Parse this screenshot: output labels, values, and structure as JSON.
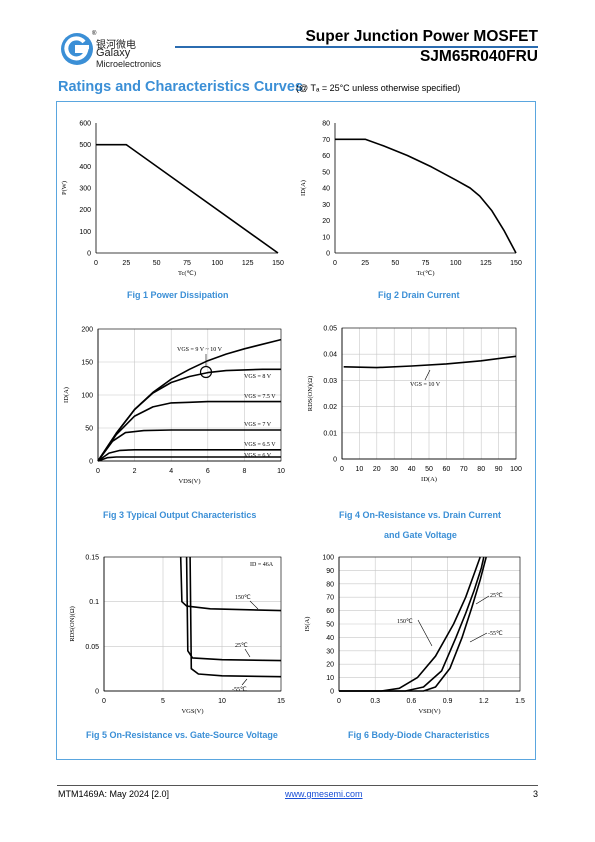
{
  "header": {
    "title": "Super Junction Power MOSFET",
    "part_number": "SJM65R040FRU",
    "brand_cn": "银河微电",
    "brand_name": "Galaxy",
    "brand_sub": "Microelectronics",
    "logo_mark": "®",
    "accent_color": "#2b6cb0"
  },
  "section": {
    "title": "Ratings and Characteristics Curves",
    "condition": "(@ Tₐ = 25°C unless otherwise specified)",
    "title_color": "#3b8fd6"
  },
  "captions": {
    "fig1": "Fig 1    Power Dissipation",
    "fig2": "Fig 2    Drain Current",
    "fig3": "Fig 3    Typical Output Characteristics",
    "fig4a": "Fig 4    On-Resistance vs. Drain Current",
    "fig4b": "and Gate Voltage",
    "fig5": "Fig 5    On-Resistance vs. Gate-Source Voltage",
    "fig6": "Fig 6    Body-Diode Characteristics"
  },
  "chart_data": [
    {
      "id": "fig1",
      "type": "line",
      "xlabel": "Tc(℃)",
      "ylabel": "P(W)",
      "xlim": [
        0,
        150
      ],
      "ylim": [
        0,
        600
      ],
      "xticks": [
        0,
        25,
        50,
        75,
        100,
        125,
        150
      ],
      "yticks": [
        0,
        100,
        200,
        300,
        400,
        500,
        600
      ],
      "grid": false,
      "series": [
        {
          "points": [
            [
              0,
              500
            ],
            [
              25,
              500
            ],
            [
              150,
              0
            ]
          ]
        }
      ]
    },
    {
      "id": "fig2",
      "type": "line",
      "xlabel": "Tc(℃)",
      "ylabel": "ID(A)",
      "xlim": [
        0,
        150
      ],
      "ylim": [
        0,
        80
      ],
      "xticks": [
        0,
        25,
        50,
        75,
        100,
        125,
        150
      ],
      "yticks": [
        0,
        10,
        20,
        30,
        40,
        50,
        60,
        70,
        80
      ],
      "grid": false,
      "series": [
        {
          "points": [
            [
              0,
              70
            ],
            [
              25,
              70
            ],
            [
              40,
              66
            ],
            [
              60,
              60
            ],
            [
              80,
              53
            ],
            [
              100,
              45
            ],
            [
              112,
              40
            ],
            [
              120,
              35
            ],
            [
              130,
              26
            ],
            [
              140,
              14
            ],
            [
              150,
              0
            ]
          ]
        }
      ]
    },
    {
      "id": "fig3",
      "type": "line",
      "xlabel": "VDS(V)",
      "ylabel": "ID(A)",
      "xlim": [
        0,
        10
      ],
      "ylim": [
        0,
        200
      ],
      "xticks": [
        0,
        2,
        4,
        6,
        8,
        10
      ],
      "yticks": [
        0,
        50,
        100,
        150,
        200
      ],
      "grid": true,
      "series": [
        {
          "name": "VGS = 9 V ~ 10 V",
          "points": [
            [
              0,
              0
            ],
            [
              1,
              42
            ],
            [
              2,
              78
            ],
            [
              3,
              104
            ],
            [
              4,
              124
            ],
            [
              5,
              139
            ],
            [
              6,
              152
            ],
            [
              7,
              162
            ],
            [
              8,
              170
            ],
            [
              9,
              177
            ],
            [
              10,
              184
            ]
          ]
        },
        {
          "name": "VGS = 8 V",
          "points": [
            [
              0,
              0
            ],
            [
              1,
              42
            ],
            [
              2,
              78
            ],
            [
              3,
              103
            ],
            [
              4,
              119
            ],
            [
              5,
              128
            ],
            [
              6,
              134
            ],
            [
              7,
              137
            ],
            [
              8,
              138
            ],
            [
              9,
              139
            ],
            [
              10,
              139
            ]
          ]
        },
        {
          "name": "VGS = 7.5 V",
          "points": [
            [
              0,
              0
            ],
            [
              1,
              40
            ],
            [
              2,
              68
            ],
            [
              3,
              82
            ],
            [
              4,
              88
            ],
            [
              5,
              89
            ],
            [
              6,
              90
            ],
            [
              8,
              90
            ],
            [
              10,
              90
            ]
          ]
        },
        {
          "name": "VGS = 7 V",
          "points": [
            [
              0,
              0
            ],
            [
              0.8,
              30
            ],
            [
              1.5,
              43
            ],
            [
              2.5,
              46
            ],
            [
              4,
              47
            ],
            [
              10,
              47
            ]
          ]
        },
        {
          "name": "VGS = 6.5 V",
          "points": [
            [
              0,
              0
            ],
            [
              0.6,
              12
            ],
            [
              1.2,
              16
            ],
            [
              2,
              17
            ],
            [
              10,
              17
            ]
          ]
        },
        {
          "name": "VGS = 6 V",
          "points": [
            [
              0,
              0
            ],
            [
              0.5,
              5
            ],
            [
              1,
              6
            ],
            [
              10,
              6
            ]
          ]
        }
      ]
    },
    {
      "id": "fig4",
      "type": "line",
      "xlabel": "ID(A)",
      "ylabel": "RDS(ON)(Ω)",
      "xlim": [
        0,
        100
      ],
      "ylim": [
        0,
        0.05
      ],
      "xticks": [
        0,
        10,
        20,
        30,
        40,
        50,
        60,
        70,
        80,
        90,
        100
      ],
      "yticks": [
        0,
        0.01,
        0.02,
        0.03,
        0.04,
        0.05
      ],
      "grid": true,
      "series": [
        {
          "name": "VGS = 10 V",
          "points": [
            [
              1,
              0.0352
            ],
            [
              20,
              0.0349
            ],
            [
              40,
              0.0355
            ],
            [
              60,
              0.0363
            ],
            [
              80,
              0.0375
            ],
            [
              100,
              0.0392
            ]
          ]
        }
      ]
    },
    {
      "id": "fig5",
      "type": "line",
      "xlabel": "VGS(V)",
      "ylabel": "RDS(ON)(Ω)",
      "annotation": "ID = 46A",
      "xlim": [
        0,
        15
      ],
      "ylim": [
        0,
        0.15
      ],
      "xticks": [
        0,
        5,
        10,
        15
      ],
      "yticks": [
        0,
        0.05,
        0.1,
        0.15
      ],
      "grid": true,
      "series": [
        {
          "name": "150℃",
          "points": [
            [
              6.5,
              0.15
            ],
            [
              6.6,
              0.1
            ],
            [
              7,
              0.095
            ],
            [
              9,
              0.092
            ],
            [
              15,
              0.09
            ]
          ]
        },
        {
          "name": "25℃",
          "points": [
            [
              7.0,
              0.15
            ],
            [
              7.1,
              0.045
            ],
            [
              7.5,
              0.037
            ],
            [
              10,
              0.035
            ],
            [
              15,
              0.034
            ]
          ]
        },
        {
          "name": "-55℃",
          "points": [
            [
              7.3,
              0.15
            ],
            [
              7.4,
              0.025
            ],
            [
              8,
              0.019
            ],
            [
              10,
              0.017
            ],
            [
              15,
              0.016
            ]
          ]
        }
      ]
    },
    {
      "id": "fig6",
      "type": "line",
      "xlabel": "VSD(V)",
      "ylabel": "IS(A)",
      "xlim": [
        0,
        1.5
      ],
      "ylim": [
        0,
        100
      ],
      "xticks": [
        0,
        0.3,
        0.6,
        0.9,
        1.2,
        1.5
      ],
      "yticks": [
        0,
        10,
        20,
        30,
        40,
        50,
        60,
        70,
        80,
        90,
        100
      ],
      "grid": true,
      "series": [
        {
          "name": "150℃",
          "points": [
            [
              0,
              0
            ],
            [
              0.35,
              0
            ],
            [
              0.5,
              2
            ],
            [
              0.65,
              10
            ],
            [
              0.8,
              26
            ],
            [
              0.95,
              50
            ],
            [
              1.05,
              70
            ],
            [
              1.13,
              90
            ],
            [
              1.17,
              100
            ]
          ]
        },
        {
          "name": "25℃",
          "points": [
            [
              0,
              0
            ],
            [
              0.55,
              0
            ],
            [
              0.7,
              3
            ],
            [
              0.85,
              15
            ],
            [
              0.97,
              40
            ],
            [
              1.05,
              58
            ],
            [
              1.12,
              75
            ],
            [
              1.18,
              92
            ],
            [
              1.2,
              100
            ]
          ]
        },
        {
          "name": "-55℃",
          "points": [
            [
              0,
              0
            ],
            [
              0.7,
              0
            ],
            [
              0.8,
              3
            ],
            [
              0.92,
              17
            ],
            [
              1.02,
              40
            ],
            [
              1.1,
              62
            ],
            [
              1.17,
              83
            ],
            [
              1.22,
              100
            ]
          ]
        }
      ]
    }
  ],
  "labels": {
    "fig3": [
      "VGS = 9 V ~ 10 V",
      "VGS = 8 V",
      "VGS = 7.5 V",
      "VGS = 7 V",
      "VGS = 6.5 V",
      "VGS = 6 V"
    ],
    "fig4": "VGS = 10 V",
    "fig5": [
      "ID = 46A",
      "150℃",
      "25℃",
      "-55℃"
    ],
    "fig6": [
      "25℃",
      "150℃",
      "-55℃"
    ]
  },
  "footer": {
    "doc": "MTM1469A: May 2024 [2.0]",
    "link": "www.gmesemi.com",
    "page": "3"
  }
}
